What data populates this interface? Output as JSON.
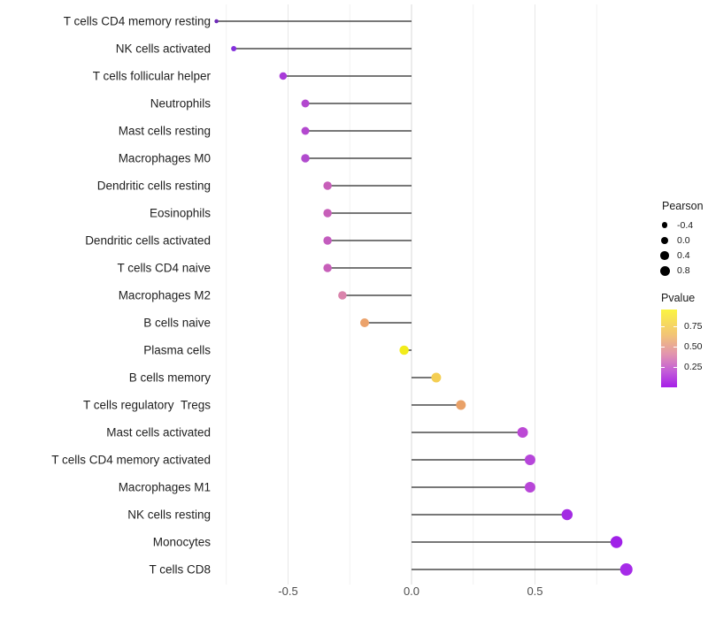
{
  "chart_data": {
    "type": "lollipop",
    "orientation": "horizontal",
    "title": "",
    "xlabel": "",
    "ylabel": "",
    "x_axis": {
      "tick_labels": [
        "-0.5",
        "0.0",
        "0.5"
      ],
      "tick_values": [
        -0.5,
        0.0,
        0.5
      ],
      "minor_gridline_values": [
        -0.75,
        -0.25,
        0.25,
        0.75
      ],
      "range": [
        -0.9,
        1.0
      ],
      "grid": "vertical-only"
    },
    "points": [
      {
        "label": "T cells CD4 memory resting",
        "pearson": -0.79,
        "color": "#6F2BB8",
        "size": 4.5
      },
      {
        "label": "NK cells activated",
        "pearson": -0.72,
        "color": "#8430DC",
        "size": 6
      },
      {
        "label": "T cells follicular helper",
        "pearson": -0.52,
        "color": "#A83AD9",
        "size": 8.5
      },
      {
        "label": "Neutrophils",
        "pearson": -0.43,
        "color": "#B348CF",
        "size": 9
      },
      {
        "label": "Mast cells resting",
        "pearson": -0.43,
        "color": "#B348CF",
        "size": 9
      },
      {
        "label": "Macrophages M0",
        "pearson": -0.43,
        "color": "#B14BCE",
        "size": 9.5
      },
      {
        "label": "Dendritic cells resting",
        "pearson": -0.34,
        "color": "#C75FB9",
        "size": 9.5
      },
      {
        "label": "Eosinophils",
        "pearson": -0.34,
        "color": "#C75FB9",
        "size": 9.5
      },
      {
        "label": "Dendritic cells activated",
        "pearson": -0.34,
        "color": "#C35CBE",
        "size": 9.5
      },
      {
        "label": "T cells CD4 naive",
        "pearson": -0.34,
        "color": "#C75FB9",
        "size": 9.5
      },
      {
        "label": "Macrophages M2",
        "pearson": -0.28,
        "color": "#DA84AC",
        "size": 9.5
      },
      {
        "label": "B cells naive",
        "pearson": -0.19,
        "color": "#EBA26B",
        "size": 10
      },
      {
        "label": "Plasma cells",
        "pearson": -0.03,
        "color": "#F2EC1C",
        "size": 10.5
      },
      {
        "label": "B cells memory",
        "pearson": 0.1,
        "color": "#F4CE52",
        "size": 11
      },
      {
        "label": "T cells regulatory  Tregs",
        "pearson": 0.2,
        "color": "#E9A168",
        "size": 11
      },
      {
        "label": "Mast cells activated",
        "pearson": 0.45,
        "color": "#BC49D5",
        "size": 12
      },
      {
        "label": "T cells CD4 memory activated",
        "pearson": 0.48,
        "color": "#B646DA",
        "size": 12
      },
      {
        "label": "Macrophages M1",
        "pearson": 0.48,
        "color": "#B846D8",
        "size": 12
      },
      {
        "label": "NK cells resting",
        "pearson": 0.63,
        "color": "#A32BE3",
        "size": 12.5
      },
      {
        "label": "Monocytes",
        "pearson": 0.83,
        "color": "#A021E8",
        "size": 13.5
      },
      {
        "label": "T cells CD8",
        "pearson": 0.87,
        "color": "#A62BE8",
        "size": 14
      }
    ],
    "legend": {
      "size_legend": {
        "title": "Pearson",
        "items": [
          {
            "label": "-0.4",
            "diameter": 6.5
          },
          {
            "label": "0.0",
            "diameter": 8
          },
          {
            "label": "0.4",
            "diameter": 9.5
          },
          {
            "label": "0.8",
            "diameter": 11
          }
        ],
        "dot_color": "#000000"
      },
      "color_legend": {
        "title": "Pvalue",
        "ticks": [
          {
            "label": "0.75",
            "pos": 0.216
          },
          {
            "label": "0.50",
            "pos": 0.477
          },
          {
            "label": "0.25",
            "pos": 0.739
          }
        ],
        "gradient": [
          {
            "color": "#FBF441",
            "pos": 0
          },
          {
            "color": "#F2C377",
            "pos": 0.33
          },
          {
            "color": "#E193B0",
            "pos": 0.58
          },
          {
            "color": "#C25BD9",
            "pos": 0.8
          },
          {
            "color": "#A61FE8",
            "pos": 1
          }
        ]
      }
    },
    "style_colors": {
      "stem": "#4a4a4a",
      "grid_zero": "#d8d8d8",
      "grid_major": "#e7e7e7",
      "grid_minor": "#f1f1f1",
      "background": "#ffffff"
    }
  }
}
